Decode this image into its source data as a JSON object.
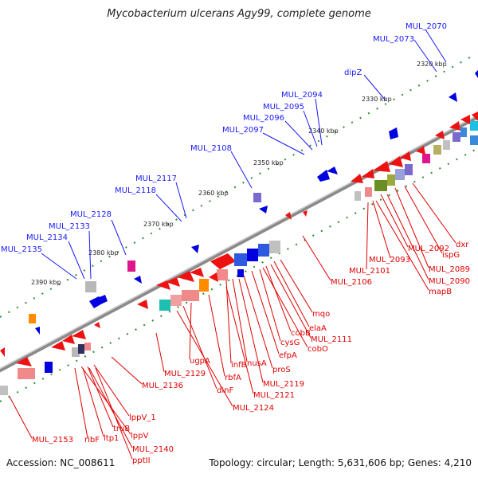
{
  "title": "Mycobacterium ulcerans Agy99, complete genome",
  "footer": {
    "accession": "Accession: NC_008611",
    "summary": "Topology: circular; Length: 5,631,606 bp; Genes: 4,210"
  },
  "colors": {
    "blue_labels": "#1a1aff",
    "red_labels": "#e00000",
    "backbone": "#888888",
    "tick": "#2e8b2e"
  },
  "kbp_ticks": [
    "2320 kbp",
    "2330 kbp",
    "2340 kbp",
    "2350 kbp",
    "2360 kbp",
    "2370 kbp",
    "2380 kbp",
    "2390 kbp"
  ],
  "blue_genes": [
    "MUL_2070",
    "MUL_2073",
    "dipZ",
    "MUL_2094",
    "MUL_2095",
    "MUL_2096",
    "MUL_2097",
    "MUL_2108",
    "MUL_2117",
    "MUL_2118",
    "MUL_2128",
    "MUL_2133",
    "MUL_2134",
    "MUL_2135"
  ],
  "red_genes": [
    "dxr",
    "ispG",
    "MUL_2092",
    "MUL_2089",
    "MUL_2093",
    "MUL_2090",
    "MUL_2101",
    "mapB",
    "MUL_2106",
    "mqo",
    "elaA",
    "cobB",
    "MUL_2111",
    "cysG",
    "cobO",
    "efpA",
    "proS",
    "nusA",
    "infB",
    "MUL_2119",
    "rbfA",
    "MUL_2121",
    "ugpA",
    "dinF",
    "MUL_2124",
    "MUL_2129",
    "MUL_2136",
    "lppV_1",
    "truB",
    "lppV",
    "ltp1",
    "ribF",
    "MUL_2140",
    "MUL_2153",
    "pptII"
  ]
}
